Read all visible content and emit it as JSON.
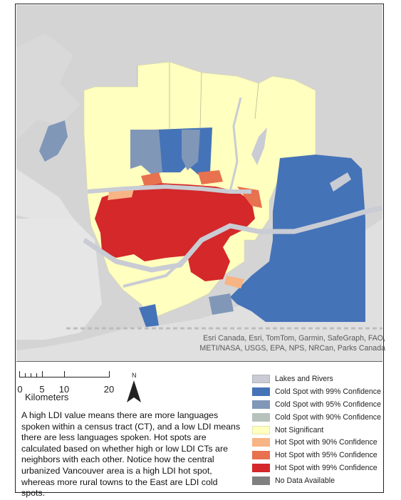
{
  "map": {
    "attribution_line1": "Esri Canada, Esri, TomTom, Garmin, SafeGraph, FAO,",
    "attribution_line2": "METI/NASA, USGS, EPA, NPS, NRCan, Parks Canada"
  },
  "scale_bar": {
    "labels": [
      "0",
      "5",
      "10",
      "20"
    ],
    "unit": "Kilometers"
  },
  "north_arrow": {
    "label": "N"
  },
  "description": "A high LDI value means there are more languages spoken within a census tract (CT), and a low LDI means there are less languages spoken. Hot spots are calculated based on whether high or low LDI CTs are neighbors with each other. Notice how the central urbanized Vancouver area is a high LDI hot spot, whereas more rural towns to the East are LDI cold spots.",
  "legend": [
    {
      "label": "Lakes and Rivers",
      "color": "#c9ccd4"
    },
    {
      "label": "Cold Spot with 99% Confidence",
      "color": "#4573b8"
    },
    {
      "label": "Cold Spot with 95% Confidence",
      "color": "#8097b8"
    },
    {
      "label": "Cold Spot with 90% Confidence",
      "color": "#b8c2bc"
    },
    {
      "label": "Not Significant",
      "color": "#ffffbf"
    },
    {
      "label": "Hot Spot with 90% Confidence",
      "color": "#f7b484"
    },
    {
      "label": "Hot Spot with 95% Confidence",
      "color": "#e8714f"
    },
    {
      "label": "Hot Spot with 99% Confidence",
      "color": "#d4282a"
    },
    {
      "label": "No Data Available",
      "color": "#808080"
    }
  ]
}
